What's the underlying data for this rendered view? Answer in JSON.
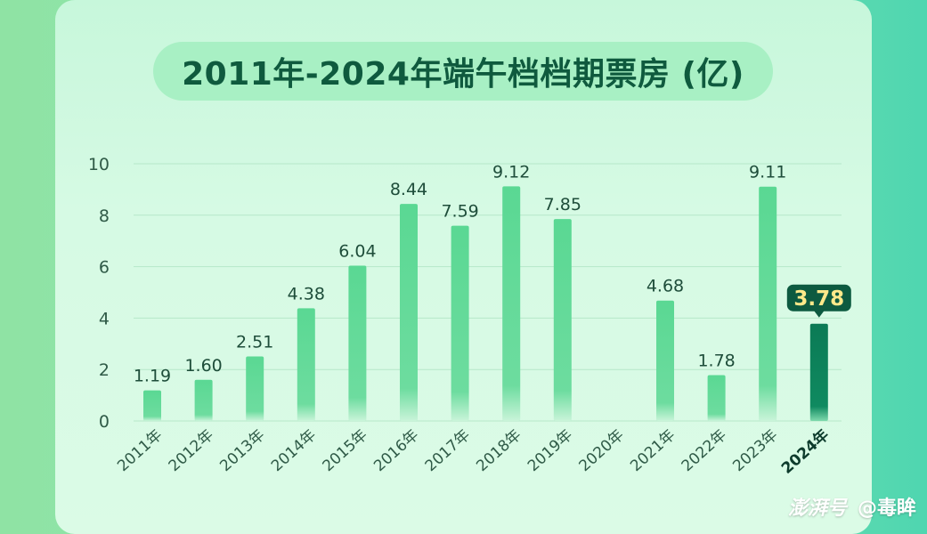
{
  "chart_data": {
    "type": "bar",
    "title": "2011年-2024年端午档档期票房 (亿)",
    "categories": [
      "2011年",
      "2012年",
      "2013年",
      "2014年",
      "2015年",
      "2016年",
      "2017年",
      "2018年",
      "2019年",
      "2020年",
      "2021年",
      "2022年",
      "2023年",
      "2024年"
    ],
    "values": [
      1.19,
      1.6,
      2.51,
      4.38,
      6.04,
      8.44,
      7.59,
      9.12,
      7.85,
      null,
      4.68,
      1.78,
      9.11,
      3.78
    ],
    "value_labels": [
      "1.19",
      "1.60",
      "2.51",
      "4.38",
      "6.04",
      "8.44",
      "7.59",
      "9.12",
      "7.85",
      "",
      "4.68",
      "1.78",
      "9.11",
      "3.78"
    ],
    "yticks": [
      "0",
      "2",
      "4",
      "6",
      "8",
      "10"
    ],
    "ylim": [
      0,
      10
    ],
    "grid": true,
    "highlight": "2024年",
    "colors": {
      "bar": "#5ad893",
      "highlight": "#0b7a55",
      "label": "#1e4d3a",
      "callout_bg": "#0d5a40",
      "callout_text": "#ffe98a"
    }
  },
  "footer": {
    "logo": "澎湃号",
    "author": "@毒眸"
  }
}
